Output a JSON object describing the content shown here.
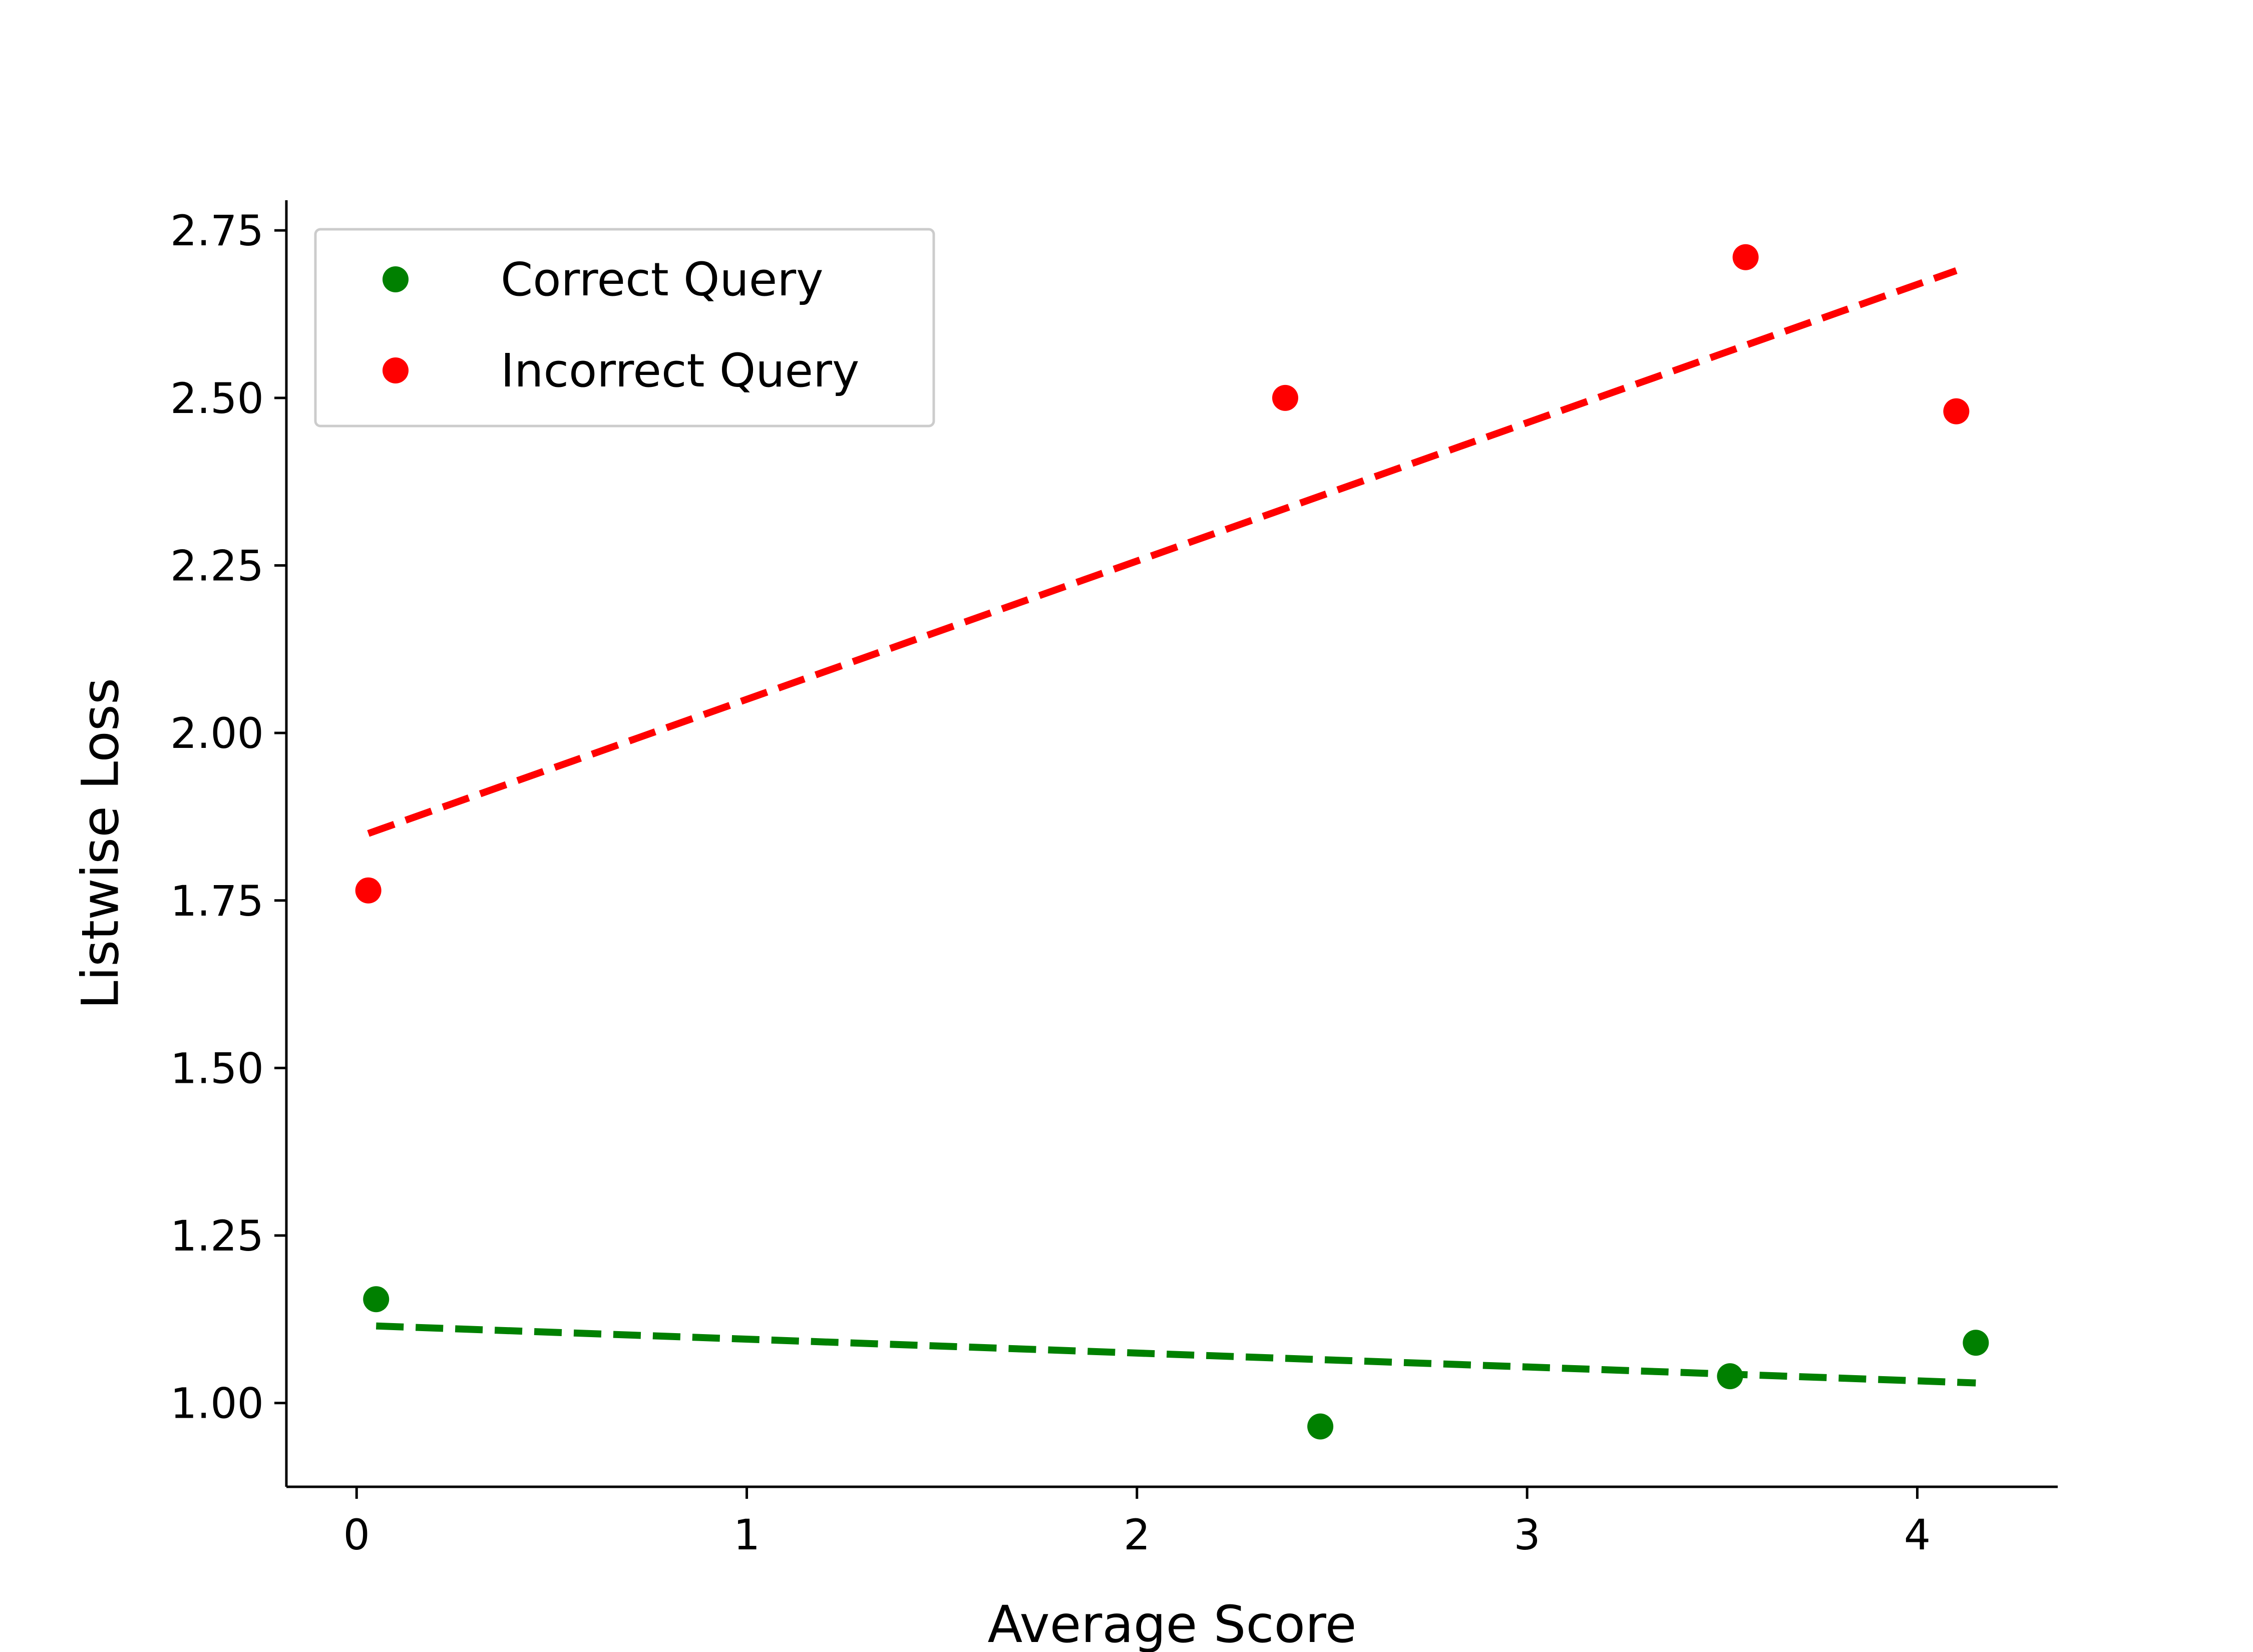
{
  "chart_data": {
    "type": "scatter",
    "title": "",
    "xlabel": "Average Score",
    "ylabel": "Listwise Loss",
    "xlim": [
      -0.18,
      4.36
    ],
    "ylim": [
      0.875,
      2.795
    ],
    "xticks": [
      0,
      1,
      2,
      3,
      4
    ],
    "xtick_labels": [
      "0",
      "1",
      "2",
      "3",
      "4"
    ],
    "yticks": [
      1.0,
      1.25,
      1.5,
      1.75,
      2.0,
      2.25,
      2.5,
      2.75
    ],
    "ytick_labels": [
      "1.00",
      "1.25",
      "1.50",
      "1.75",
      "2.00",
      "2.25",
      "2.50",
      "2.75"
    ],
    "grid": false,
    "legend_position": "upper-left",
    "series": [
      {
        "name": "Correct Query",
        "color": "#008000",
        "points": [
          {
            "x": 0.05,
            "y": 1.155
          },
          {
            "x": 2.47,
            "y": 0.965
          },
          {
            "x": 3.52,
            "y": 1.04
          },
          {
            "x": 4.15,
            "y": 1.09
          }
        ],
        "trendline": {
          "x": [
            0.05,
            4.15
          ],
          "y": [
            1.115,
            1.03
          ],
          "style": "dashed"
        }
      },
      {
        "name": "Incorrect Query",
        "color": "#ff0000",
        "points": [
          {
            "x": 0.03,
            "y": 1.765
          },
          {
            "x": 2.38,
            "y": 2.5
          },
          {
            "x": 3.56,
            "y": 2.71
          },
          {
            "x": 4.1,
            "y": 2.48
          }
        ],
        "trendline": {
          "x": [
            0.03,
            4.1
          ],
          "y": [
            1.85,
            2.69
          ],
          "style": "dashed"
        }
      }
    ]
  }
}
